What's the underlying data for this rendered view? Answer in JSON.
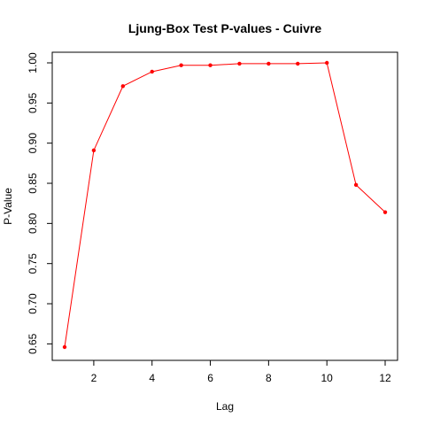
{
  "chart_data": {
    "type": "line",
    "title": "Ljung-Box Test P-values - Cuivre",
    "xlabel": "Lag",
    "ylabel": "P-Value",
    "x": [
      1,
      2,
      3,
      4,
      5,
      6,
      7,
      8,
      9,
      10,
      11,
      12
    ],
    "series": [
      {
        "color": "#ff0000",
        "values": [
          0.646,
          0.891,
          0.971,
          0.989,
          0.997,
          0.997,
          0.999,
          0.999,
          0.999,
          1.0,
          0.848,
          0.814
        ]
      }
    ],
    "xlim": [
      1,
      12
    ],
    "ylim": [
      0.646,
      1.0
    ],
    "xticks": [
      2,
      4,
      6,
      8,
      10,
      12
    ],
    "xtick_labels": [
      "2",
      "4",
      "6",
      "8",
      "10",
      "12"
    ],
    "yticks": [
      0.65,
      0.7,
      0.75,
      0.8,
      0.85,
      0.9,
      0.95,
      1.0
    ],
    "ytick_labels": [
      "0.65",
      "0.70",
      "0.75",
      "0.80",
      "0.85",
      "0.90",
      "0.95",
      "1.00"
    ],
    "grid": false,
    "legend": "none"
  }
}
